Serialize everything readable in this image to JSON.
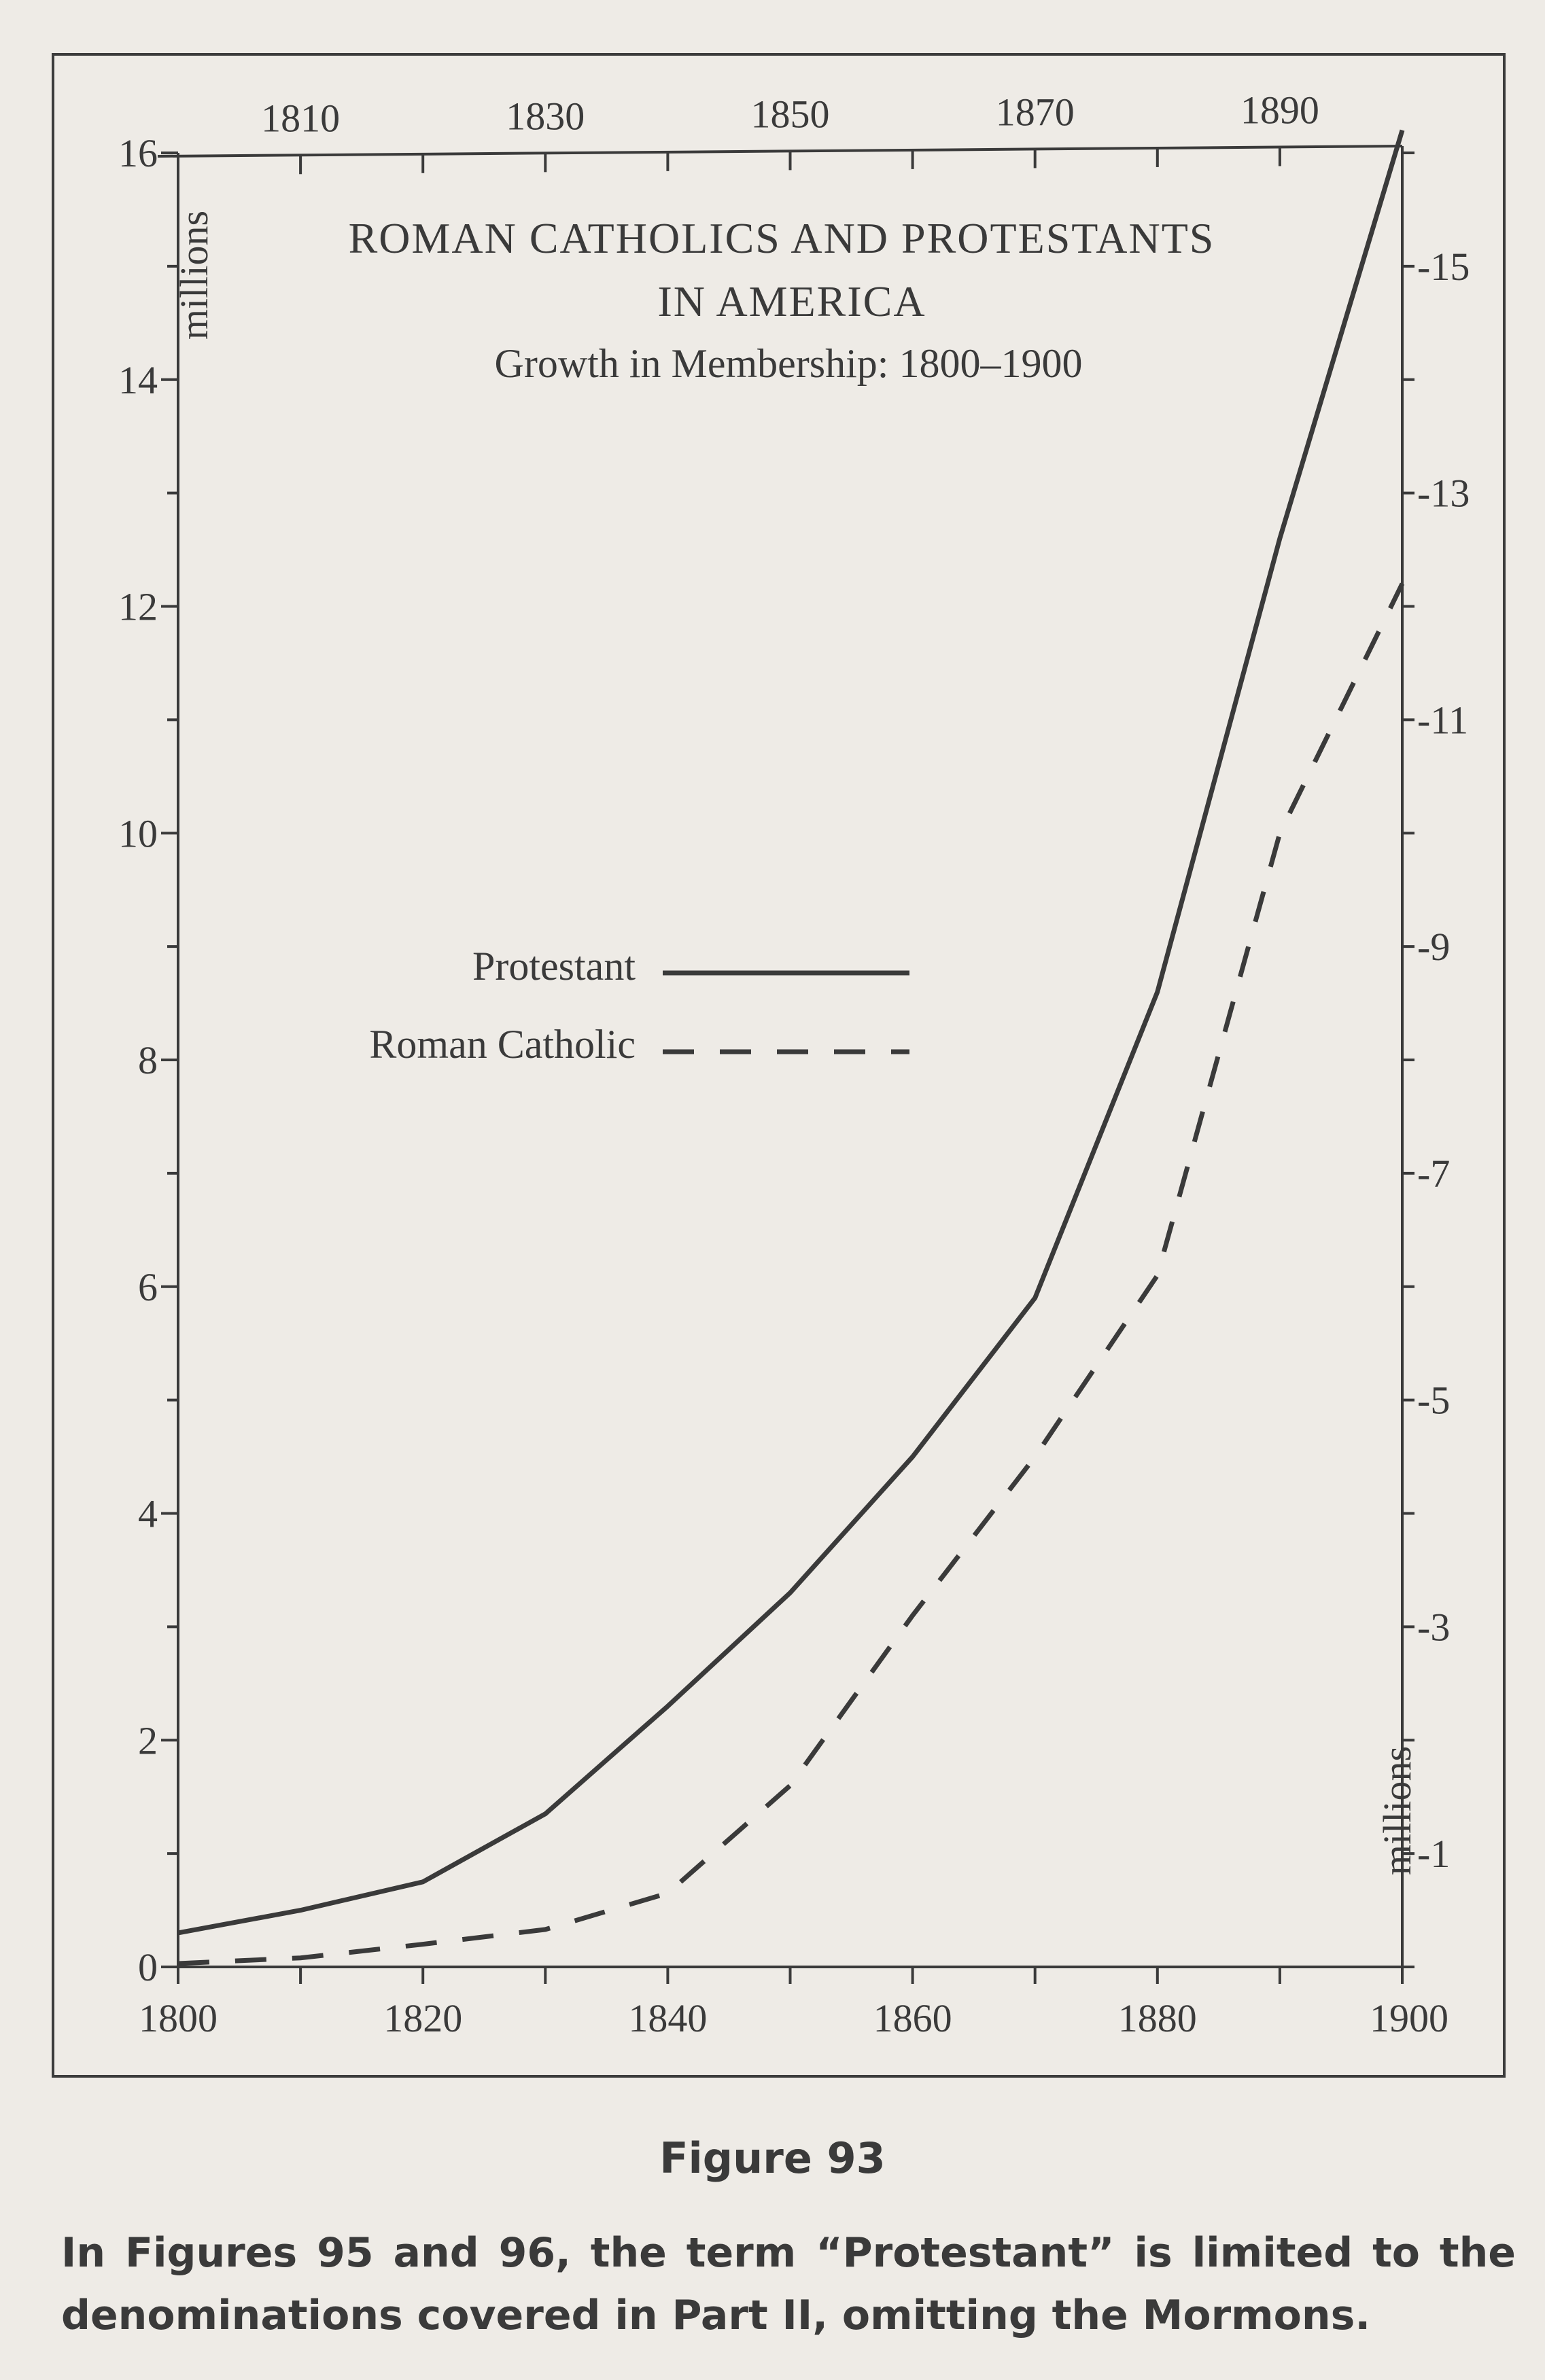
{
  "chart_data": {
    "type": "line",
    "title": [
      "ROMAN CATHOLICS AND PROTESTANTS",
      "IN AMERICA"
    ],
    "subtitle": "Growth in Membership: 1800–1900",
    "x": [
      1800,
      1810,
      1820,
      1830,
      1840,
      1850,
      1860,
      1870,
      1880,
      1890,
      1900
    ],
    "xlim": [
      1800,
      1900
    ],
    "x_ticks_bottom": [
      "1800",
      "1820",
      "1840",
      "1860",
      "1880",
      "1900"
    ],
    "x_ticks_top": [
      "1810",
      "1830",
      "1850",
      "1870",
      "1890"
    ],
    "ylim": [
      0,
      16
    ],
    "y_ticks_left": [
      "0",
      "2",
      "4",
      "6",
      "8",
      "10",
      "12",
      "14",
      "16"
    ],
    "y_ticks_right": [
      "1",
      "3",
      "5",
      "7",
      "9",
      "11",
      "13",
      "15"
    ],
    "ylabel_left": "millions",
    "ylabel_right": "millions",
    "series": [
      {
        "name": "Protestant",
        "style": "solid",
        "color": "#3a3a3a",
        "values": [
          0.3,
          0.5,
          0.75,
          1.35,
          2.3,
          3.3,
          4.5,
          5.9,
          8.6,
          12.6,
          16.2
        ]
      },
      {
        "name": "Roman Catholic",
        "style": "dashed",
        "color": "#3a3a3a",
        "values": [
          0.03,
          0.08,
          0.2,
          0.33,
          0.65,
          1.6,
          3.1,
          4.5,
          6.1,
          10.0,
          12.2
        ]
      }
    ],
    "legend_position": "center-left",
    "grid": false
  },
  "caption": {
    "figure": "Figure 93",
    "note": "In Figures 95 and 96, the term “Protestant” is limited to the denominations covered in Part II, omitting the Mormons."
  }
}
